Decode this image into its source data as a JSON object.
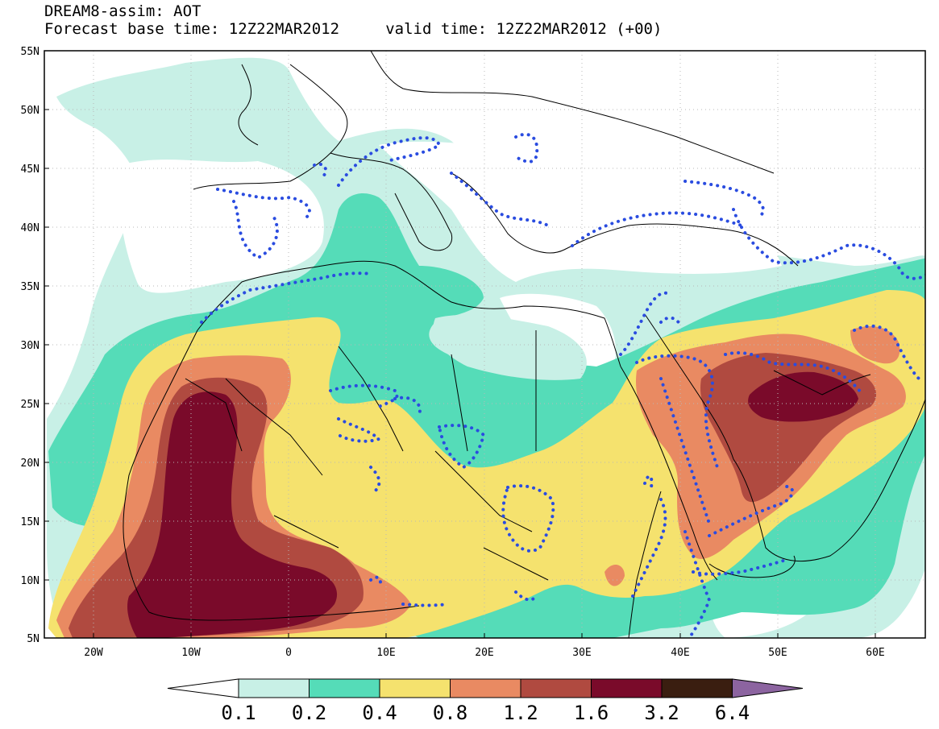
{
  "header": {
    "title": "DREAM8-assim: AOT",
    "line2": "Forecast base time: 12Z22MAR2012     valid time: 12Z22MAR2012 (+00)"
  },
  "map": {
    "lat_labels": [
      "55N",
      "50N",
      "45N",
      "40N",
      "35N",
      "30N",
      "25N",
      "20N",
      "15N",
      "10N",
      "5N"
    ],
    "lon_labels": [
      "20W",
      "10W",
      "0",
      "10E",
      "20E",
      "30E",
      "40E",
      "50E",
      "60E"
    ]
  },
  "colorbar": {
    "levels": [
      "0.1",
      "0.2",
      "0.4",
      "0.8",
      "1.2",
      "1.6",
      "3.2",
      "6.4"
    ],
    "colors": [
      "#ffffff",
      "#c8f0e6",
      "#55dcb8",
      "#f5e26e",
      "#e98a62",
      "#b04a40",
      "#7a0a2a",
      "#3a1e10",
      "#8c64a0"
    ]
  },
  "colors": {
    "c01": "#c8f0e6",
    "c02": "#55dcb8",
    "c04": "#f5e26e",
    "c08": "#e98a62",
    "c12": "#b04a40",
    "c16": "#7a0a2a",
    "dots": "#2a4ce0"
  }
}
